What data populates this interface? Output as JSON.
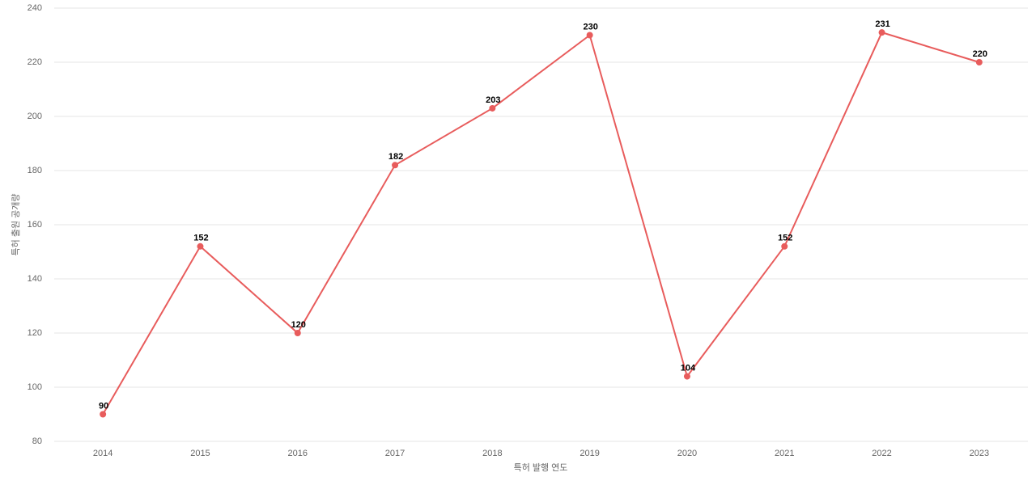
{
  "chart_data": {
    "type": "line",
    "x_label": "특허 발행 연도",
    "y_label": "특허 출원 공개량",
    "categories": [
      "2014",
      "2015",
      "2016",
      "2017",
      "2018",
      "2019",
      "2020",
      "2021",
      "2022",
      "2023"
    ],
    "series": [
      {
        "name": "특허 출원 공개량",
        "color": "#e85c5c",
        "values": [
          90,
          152,
          120,
          182,
          203,
          230,
          104,
          152,
          231,
          220
        ]
      }
    ],
    "ylim": [
      80,
      240
    ],
    "yticks": [
      80,
      100,
      120,
      140,
      160,
      180,
      200,
      220,
      240
    ],
    "grid": true
  }
}
